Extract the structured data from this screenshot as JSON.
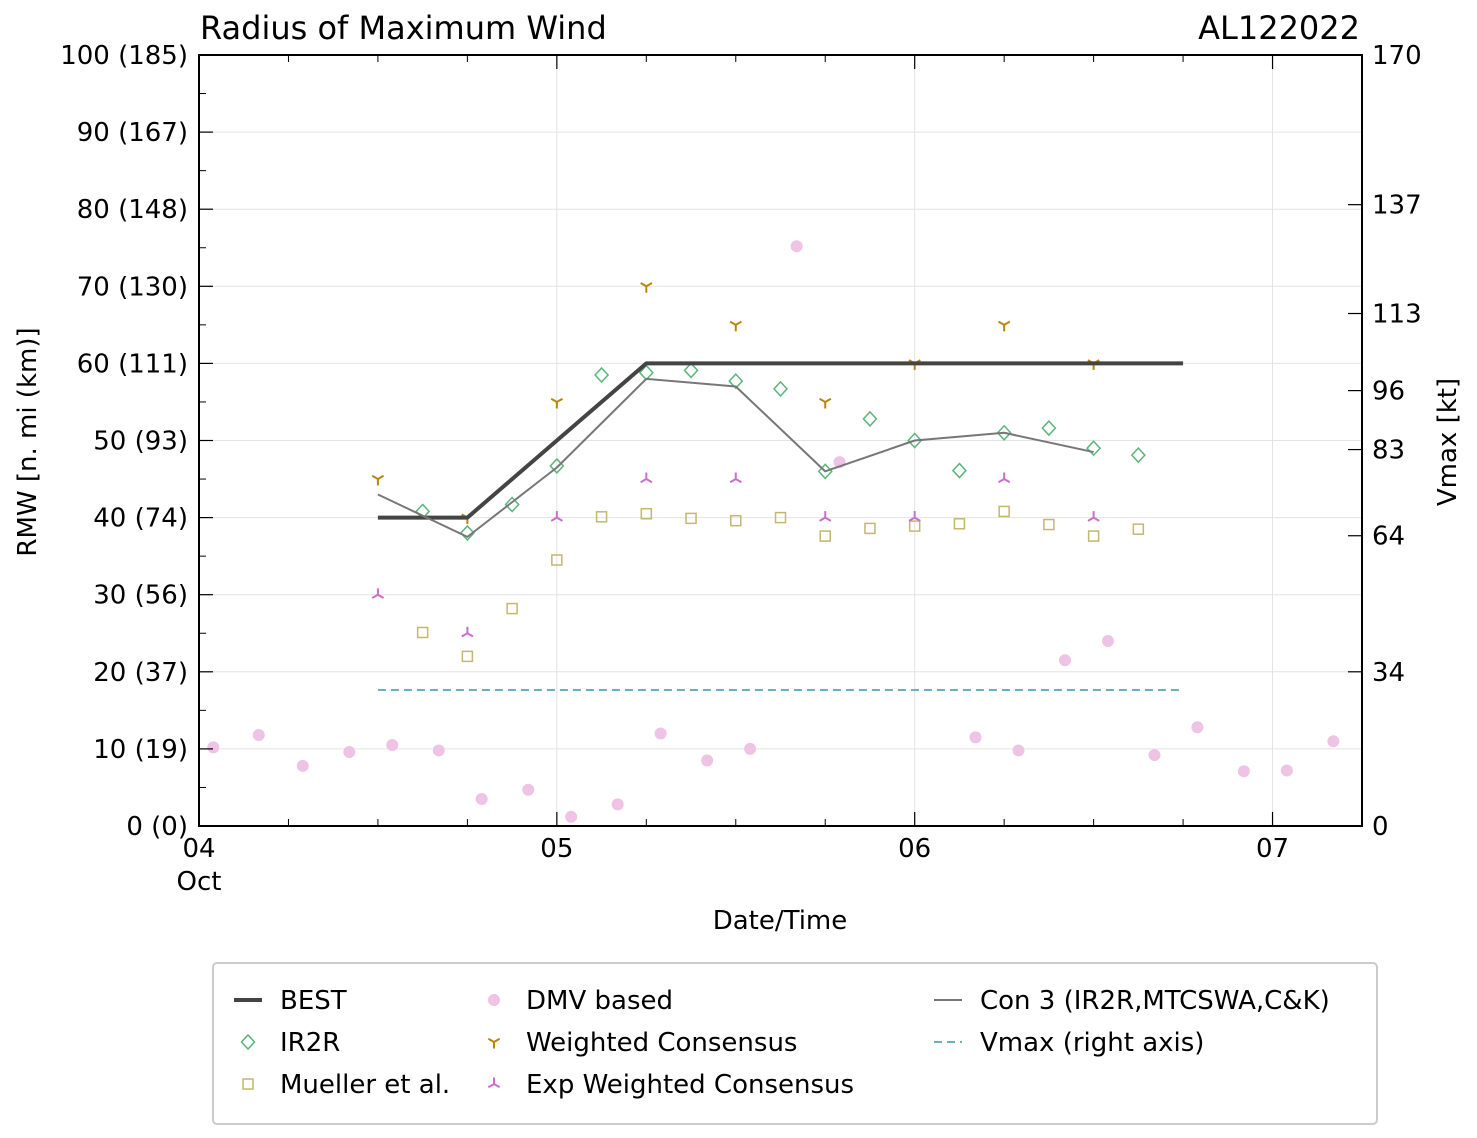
{
  "chart_data": {
    "type": "scatter",
    "title": "Radius of Maximum Wind",
    "storm_id": "AL122022",
    "xlabel": "Date/Time",
    "ylabel": "RMW [n. mi (km)]",
    "y2label": "Vmax [kt]",
    "x_unit": "days since Oct 04 00Z",
    "xlim": [
      0,
      3.25
    ],
    "ylim": [
      0,
      100
    ],
    "y2lim": [
      0,
      170
    ],
    "grid": true,
    "x_ticks": [
      {
        "x": 0,
        "label": "04",
        "sublabel": "Oct"
      },
      {
        "x": 1,
        "label": "05",
        "sublabel": ""
      },
      {
        "x": 2,
        "label": "06",
        "sublabel": ""
      },
      {
        "x": 3,
        "label": "07",
        "sublabel": ""
      }
    ],
    "y_ticks": [
      {
        "y": 0,
        "label": "0 (0)"
      },
      {
        "y": 10,
        "label": "10 (19)"
      },
      {
        "y": 20,
        "label": "20 (37)"
      },
      {
        "y": 30,
        "label": "30 (56)"
      },
      {
        "y": 40,
        "label": "40 (74)"
      },
      {
        "y": 50,
        "label": "50 (93)"
      },
      {
        "y": 60,
        "label": "60 (111)"
      },
      {
        "y": 70,
        "label": "70 (130)"
      },
      {
        "y": 80,
        "label": "80 (148)"
      },
      {
        "y": 90,
        "label": "90 (167)"
      },
      {
        "y": 100,
        "label": "100 (185)"
      }
    ],
    "y2_ticks": [
      {
        "v": 0,
        "label": "0"
      },
      {
        "v": 34,
        "label": "34"
      },
      {
        "v": 64,
        "label": "64"
      },
      {
        "v": 83,
        "label": "83"
      },
      {
        "v": 96,
        "label": "96"
      },
      {
        "v": 113,
        "label": "113"
      },
      {
        "v": 137,
        "label": "137"
      },
      {
        "v": 170,
        "label": "170"
      }
    ],
    "series": [
      {
        "name": "BEST",
        "kind": "line",
        "color": "#444444",
        "width": 4,
        "points": [
          [
            0.5,
            40
          ],
          [
            0.75,
            40
          ],
          [
            1.25,
            60
          ],
          [
            2.75,
            60
          ]
        ]
      },
      {
        "name": "Con 3 (IR2R,MTCSWA,C&K)",
        "kind": "line",
        "color": "#777777",
        "width": 2,
        "points": [
          [
            0.5,
            43
          ],
          [
            0.75,
            37.5
          ],
          [
            1.0,
            46.5
          ],
          [
            1.25,
            58
          ],
          [
            1.5,
            57
          ],
          [
            1.75,
            46
          ],
          [
            2.0,
            50
          ],
          [
            2.25,
            51
          ],
          [
            2.5,
            48.5
          ]
        ]
      },
      {
        "name": "Vmax (right axis)",
        "kind": "dashed",
        "color": "#6aafc0",
        "width": 2,
        "axis": "right",
        "points": [
          [
            0.5,
            30
          ],
          [
            2.75,
            30
          ]
        ]
      },
      {
        "name": "DMV based",
        "kind": "circle",
        "color": "#efc3e4",
        "points": [
          [
            0.04,
            10.2
          ],
          [
            0.167,
            11.8
          ],
          [
            0.29,
            7.8
          ],
          [
            0.42,
            9.6
          ],
          [
            0.54,
            10.5
          ],
          [
            0.67,
            9.8
          ],
          [
            0.79,
            3.5
          ],
          [
            0.92,
            4.7
          ],
          [
            1.04,
            1.2
          ],
          [
            1.17,
            2.8
          ],
          [
            1.29,
            12
          ],
          [
            1.42,
            8.5
          ],
          [
            1.54,
            10
          ],
          [
            1.67,
            75.2
          ],
          [
            1.79,
            47.2
          ],
          [
            2.17,
            11.5
          ],
          [
            2.29,
            9.8
          ],
          [
            2.42,
            21.5
          ],
          [
            2.54,
            24
          ],
          [
            2.67,
            9.2
          ],
          [
            2.79,
            12.8
          ],
          [
            2.92,
            7.1
          ],
          [
            3.04,
            7.2
          ],
          [
            3.17,
            11
          ]
        ]
      },
      {
        "name": "IR2R",
        "kind": "diamond",
        "color": "#59b57a",
        "points": [
          [
            0.625,
            40.8
          ],
          [
            0.75,
            38
          ],
          [
            0.875,
            41.7
          ],
          [
            1.0,
            46.7
          ],
          [
            1.125,
            58.5
          ],
          [
            1.25,
            58.8
          ],
          [
            1.375,
            59.1
          ],
          [
            1.5,
            57.7
          ],
          [
            1.625,
            56.7
          ],
          [
            1.75,
            46
          ],
          [
            1.875,
            52.8
          ],
          [
            2.0,
            50
          ],
          [
            2.125,
            46.1
          ],
          [
            2.25,
            51
          ],
          [
            2.375,
            51.6
          ],
          [
            2.5,
            49
          ],
          [
            2.625,
            48.1
          ]
        ]
      },
      {
        "name": "Mueller et al.",
        "kind": "square",
        "color": "#c4b76f",
        "points": [
          [
            0.625,
            25.1
          ],
          [
            0.75,
            22
          ],
          [
            0.875,
            28.2
          ],
          [
            1.0,
            34.5
          ],
          [
            1.125,
            40.1
          ],
          [
            1.25,
            40.5
          ],
          [
            1.375,
            39.9
          ],
          [
            1.5,
            39.6
          ],
          [
            1.625,
            40
          ],
          [
            1.75,
            37.6
          ],
          [
            1.875,
            38.6
          ],
          [
            2.0,
            38.9
          ],
          [
            2.125,
            39.2
          ],
          [
            2.25,
            40.8
          ],
          [
            2.375,
            39.1
          ],
          [
            2.5,
            37.6
          ],
          [
            2.625,
            38.5
          ]
        ]
      },
      {
        "name": "Weighted Consensus",
        "kind": "tri_down",
        "color": "#b8860b",
        "points": [
          [
            0.5,
            45
          ],
          [
            0.75,
            40
          ],
          [
            1.0,
            55
          ],
          [
            1.25,
            70
          ],
          [
            1.5,
            65
          ],
          [
            1.75,
            55
          ],
          [
            2.0,
            60
          ],
          [
            2.25,
            65
          ],
          [
            2.5,
            60
          ]
        ]
      },
      {
        "name": "Exp Weighted Consensus",
        "kind": "tri_up",
        "color": "#c86fcc",
        "points": [
          [
            0.5,
            30
          ],
          [
            0.75,
            25
          ],
          [
            1.0,
            40
          ],
          [
            1.25,
            45
          ],
          [
            1.5,
            45
          ],
          [
            1.75,
            40
          ],
          [
            2.0,
            40
          ],
          [
            2.25,
            45
          ],
          [
            2.5,
            40
          ]
        ]
      }
    ],
    "legend": {
      "placement": "bottom",
      "entries": [
        {
          "label": "BEST",
          "kind": "line",
          "color": "#444444",
          "width": 4
        },
        {
          "label": "IR2R",
          "kind": "diamond",
          "color": "#59b57a"
        },
        {
          "label": "Mueller et al.",
          "kind": "square",
          "color": "#c4b76f"
        },
        {
          "label": "DMV based",
          "kind": "circle",
          "color": "#efc3e4"
        },
        {
          "label": "Weighted Consensus",
          "kind": "tri_down",
          "color": "#b8860b"
        },
        {
          "label": "Exp Weighted Consensus",
          "kind": "tri_up",
          "color": "#c86fcc"
        },
        {
          "label": "Con 3 (IR2R,MTCSWA,C&K)",
          "kind": "line",
          "color": "#777777",
          "width": 2
        },
        {
          "label": "Vmax (right axis)",
          "kind": "dashed",
          "color": "#6aafc0",
          "width": 2
        }
      ]
    }
  }
}
